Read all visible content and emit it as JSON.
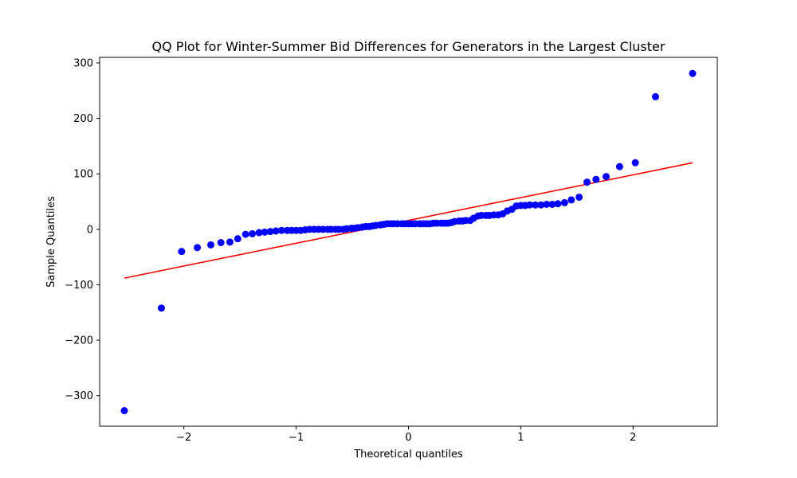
{
  "chart_data": {
    "type": "scatter",
    "title": "QQ Plot for Winter-Summer Bid Differences for Generators in the Largest Cluster",
    "xlabel": "Theoretical quantiles",
    "ylabel": "Sample Quantiles",
    "xlim": [
      -2.75,
      2.75
    ],
    "ylim": [
      -355,
      310
    ],
    "xticks": [
      -2,
      -1,
      0,
      1,
      2
    ],
    "xtick_labels": [
      "−2",
      "−1",
      "0",
      "1",
      "2"
    ],
    "yticks": [
      -300,
      -200,
      -100,
      0,
      100,
      200,
      300
    ],
    "ytick_labels": [
      "−300",
      "−200",
      "−100",
      "0",
      "100",
      "200",
      "300"
    ],
    "grid": false,
    "marker_color": "#0000ff",
    "line_color": "#ff0000",
    "reference_line": {
      "x": [
        -2.53,
        2.53
      ],
      "y": [
        -88,
        120
      ]
    },
    "points": [
      {
        "x": -2.53,
        "y": -327
      },
      {
        "x": -2.2,
        "y": -142
      },
      {
        "x": -2.02,
        "y": -40
      },
      {
        "x": -1.88,
        "y": -33
      },
      {
        "x": -1.76,
        "y": -28
      },
      {
        "x": -1.67,
        "y": -24
      },
      {
        "x": -1.59,
        "y": -23
      },
      {
        "x": -1.52,
        "y": -17
      },
      {
        "x": -1.45,
        "y": -9
      },
      {
        "x": -1.39,
        "y": -8
      },
      {
        "x": -1.33,
        "y": -6
      },
      {
        "x": -1.28,
        "y": -5
      },
      {
        "x": -1.23,
        "y": -4
      },
      {
        "x": -1.18,
        "y": -3
      },
      {
        "x": -1.13,
        "y": -2
      },
      {
        "x": -1.08,
        "y": -2
      },
      {
        "x": -1.04,
        "y": -2
      },
      {
        "x": -1.0,
        "y": -2
      },
      {
        "x": -0.96,
        "y": -2
      },
      {
        "x": -0.92,
        "y": -1
      },
      {
        "x": -0.88,
        "y": 0
      },
      {
        "x": -0.84,
        "y": 0
      },
      {
        "x": -0.8,
        "y": 0
      },
      {
        "x": -0.76,
        "y": 0
      },
      {
        "x": -0.72,
        "y": 0
      },
      {
        "x": -0.69,
        "y": 0
      },
      {
        "x": -0.65,
        "y": 0
      },
      {
        "x": -0.62,
        "y": 0
      },
      {
        "x": -0.58,
        "y": 0
      },
      {
        "x": -0.55,
        "y": 1
      },
      {
        "x": -0.51,
        "y": 2
      },
      {
        "x": -0.48,
        "y": 2
      },
      {
        "x": -0.45,
        "y": 3
      },
      {
        "x": -0.41,
        "y": 4
      },
      {
        "x": -0.38,
        "y": 5
      },
      {
        "x": -0.35,
        "y": 5
      },
      {
        "x": -0.32,
        "y": 6
      },
      {
        "x": -0.29,
        "y": 7
      },
      {
        "x": -0.25,
        "y": 8
      },
      {
        "x": -0.22,
        "y": 9
      },
      {
        "x": -0.19,
        "y": 10
      },
      {
        "x": -0.16,
        "y": 10
      },
      {
        "x": -0.13,
        "y": 10
      },
      {
        "x": -0.1,
        "y": 10
      },
      {
        "x": -0.06,
        "y": 10
      },
      {
        "x": -0.03,
        "y": 10
      },
      {
        "x": 0.0,
        "y": 10
      },
      {
        "x": 0.03,
        "y": 10
      },
      {
        "x": 0.06,
        "y": 10
      },
      {
        "x": 0.1,
        "y": 10
      },
      {
        "x": 0.13,
        "y": 10
      },
      {
        "x": 0.16,
        "y": 10
      },
      {
        "x": 0.19,
        "y": 10
      },
      {
        "x": 0.22,
        "y": 11
      },
      {
        "x": 0.25,
        "y": 11
      },
      {
        "x": 0.29,
        "y": 11
      },
      {
        "x": 0.32,
        "y": 11
      },
      {
        "x": 0.35,
        "y": 11
      },
      {
        "x": 0.38,
        "y": 12
      },
      {
        "x": 0.41,
        "y": 14
      },
      {
        "x": 0.45,
        "y": 15
      },
      {
        "x": 0.48,
        "y": 15
      },
      {
        "x": 0.51,
        "y": 16
      },
      {
        "x": 0.55,
        "y": 16
      },
      {
        "x": 0.58,
        "y": 20
      },
      {
        "x": 0.62,
        "y": 24
      },
      {
        "x": 0.65,
        "y": 25
      },
      {
        "x": 0.69,
        "y": 25
      },
      {
        "x": 0.72,
        "y": 25
      },
      {
        "x": 0.76,
        "y": 26
      },
      {
        "x": 0.8,
        "y": 26
      },
      {
        "x": 0.84,
        "y": 28
      },
      {
        "x": 0.88,
        "y": 33
      },
      {
        "x": 0.92,
        "y": 36
      },
      {
        "x": 0.96,
        "y": 42
      },
      {
        "x": 1.0,
        "y": 43
      },
      {
        "x": 1.04,
        "y": 43
      },
      {
        "x": 1.08,
        "y": 44
      },
      {
        "x": 1.13,
        "y": 44
      },
      {
        "x": 1.18,
        "y": 44
      },
      {
        "x": 1.23,
        "y": 45
      },
      {
        "x": 1.28,
        "y": 45
      },
      {
        "x": 1.33,
        "y": 46
      },
      {
        "x": 1.39,
        "y": 48
      },
      {
        "x": 1.45,
        "y": 53
      },
      {
        "x": 1.52,
        "y": 58
      },
      {
        "x": 1.59,
        "y": 85
      },
      {
        "x": 1.67,
        "y": 90
      },
      {
        "x": 1.76,
        "y": 95
      },
      {
        "x": 1.88,
        "y": 113
      },
      {
        "x": 2.02,
        "y": 120
      },
      {
        "x": 2.2,
        "y": 239
      },
      {
        "x": 2.53,
        "y": 281
      }
    ]
  }
}
